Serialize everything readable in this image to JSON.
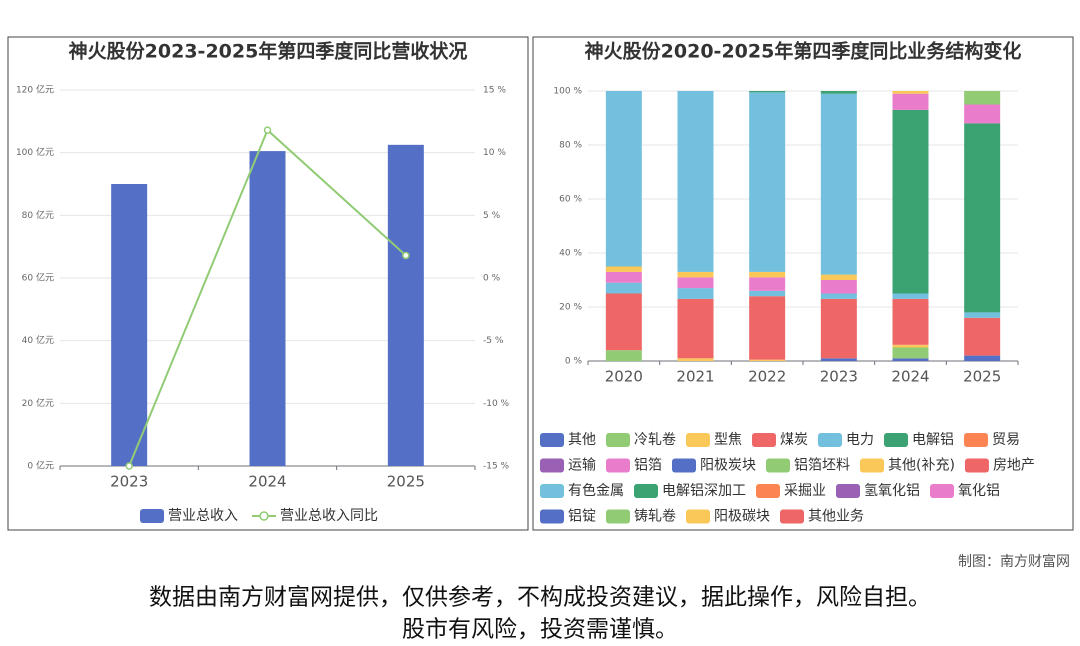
{
  "chart_data": [
    {
      "type": "bar",
      "title": "神火股份2023-2025年第四季度同比营收状况",
      "categories": [
        "2023",
        "2024",
        "2025"
      ],
      "series": [
        {
          "name": "营业总收入",
          "color": "#5470c6",
          "values": [
            90,
            100.5,
            102.5
          ]
        },
        {
          "name": "营业总收入同比",
          "color": "#91cc75",
          "type": "line",
          "axis": "y2",
          "values": [
            -15,
            11.8,
            1.8
          ]
        }
      ],
      "ylim": [
        0,
        120
      ],
      "yticks": [
        {
          "value": 0,
          "label": "0 亿元"
        },
        {
          "value": 20,
          "label": "20 亿元"
        },
        {
          "value": 40,
          "label": "40 亿元"
        },
        {
          "value": 60,
          "label": "60 亿元"
        },
        {
          "value": 80,
          "label": "80 亿元"
        },
        {
          "value": 100,
          "label": "100 亿元"
        },
        {
          "value": 120,
          "label": "120 亿元"
        }
      ],
      "y2lim": [
        -15,
        15
      ],
      "y2ticks": [
        {
          "value": -15,
          "label": "-15 %"
        },
        {
          "value": -10,
          "label": "-10 %"
        },
        {
          "value": -5,
          "label": "-5 %"
        },
        {
          "value": 0,
          "label": "0 %"
        },
        {
          "value": 5,
          "label": "5 %"
        },
        {
          "value": 10,
          "label": "10 %"
        },
        {
          "value": 15,
          "label": "15 %"
        }
      ],
      "grid": true
    },
    {
      "type": "stacked_bar",
      "title": "神火股份2020-2025年第四季度同比业务结构变化",
      "categories": [
        "2020",
        "2021",
        "2022",
        "2023",
        "2024",
        "2025"
      ],
      "series": [
        {
          "name": "其他",
          "color": "#5470c6",
          "values": [
            null,
            null,
            null,
            1,
            1,
            2
          ]
        },
        {
          "name": "冷轧卷",
          "color": "#91cc75",
          "values": [
            4,
            null,
            null,
            null,
            4,
            null
          ]
        },
        {
          "name": "型焦",
          "color": "#fac858",
          "values": [
            null,
            1,
            0.5,
            null,
            1,
            null
          ]
        },
        {
          "name": "煤炭",
          "color": "#ee6666",
          "values": [
            21,
            22,
            23.5,
            22,
            17,
            14
          ]
        },
        {
          "name": "电力",
          "color": "#73c0de",
          "values": [
            4,
            4,
            2,
            2,
            2,
            2
          ]
        },
        {
          "name": "电解铝",
          "color": "#3ba272",
          "values": [
            null,
            null,
            null,
            null,
            68,
            70
          ]
        },
        {
          "name": "贸易",
          "color": "#fc8452",
          "values": [
            null,
            null,
            null,
            null,
            null,
            null
          ]
        },
        {
          "name": "运输",
          "color": "#9a60b4",
          "values": [
            null,
            null,
            null,
            null,
            null,
            null
          ]
        },
        {
          "name": "铝箔",
          "color": "#ea7ccc",
          "values": [
            4,
            4,
            5,
            5,
            6,
            7
          ]
        },
        {
          "name": "阳极炭块",
          "color": "#5470c6",
          "values": [
            null,
            null,
            null,
            null,
            null,
            null
          ]
        },
        {
          "name": "铝箔坯料",
          "color": "#91cc75",
          "values": [
            null,
            null,
            null,
            null,
            null,
            5
          ]
        },
        {
          "name": "其他(补充)",
          "color": "#fac858",
          "values": [
            2,
            2,
            2,
            2,
            1,
            null
          ]
        },
        {
          "name": "房地产",
          "color": "#ee6666",
          "values": [
            null,
            null,
            null,
            null,
            null,
            null
          ]
        },
        {
          "name": "有色金属",
          "color": "#73c0de",
          "values": [
            65,
            67,
            66.5,
            67,
            null,
            null
          ]
        },
        {
          "name": "电解铝深加工",
          "color": "#3ba272",
          "values": [
            null,
            null,
            0.5,
            1,
            null,
            null
          ]
        },
        {
          "name": "采掘业",
          "color": "#fc8452",
          "values": [
            null,
            null,
            null,
            null,
            null,
            null
          ]
        },
        {
          "name": "氢氧化铝",
          "color": "#9a60b4",
          "values": [
            null,
            null,
            null,
            null,
            null,
            null
          ]
        },
        {
          "name": "氧化铝",
          "color": "#ea7ccc",
          "values": [
            null,
            null,
            null,
            null,
            null,
            null
          ]
        },
        {
          "name": "铝锭",
          "color": "#5470c6",
          "values": [
            null,
            null,
            null,
            null,
            null,
            null
          ]
        },
        {
          "name": "铸轧卷",
          "color": "#91cc75",
          "values": [
            null,
            null,
            null,
            null,
            null,
            null
          ]
        },
        {
          "name": "阳极碳块",
          "color": "#fac858",
          "values": [
            null,
            null,
            null,
            null,
            null,
            null
          ]
        },
        {
          "name": "其他业务",
          "color": "#ee6666",
          "values": [
            null,
            null,
            null,
            null,
            null,
            null
          ]
        }
      ],
      "ylim": [
        0,
        100
      ],
      "yticks": [
        {
          "value": 0,
          "label": "0 %"
        },
        {
          "value": 20,
          "label": "20 %"
        },
        {
          "value": 40,
          "label": "40 %"
        },
        {
          "value": 60,
          "label": "60 %"
        },
        {
          "value": 80,
          "label": "80 %"
        },
        {
          "value": 100,
          "label": "100 %"
        }
      ],
      "grid": true
    }
  ],
  "credit": "制图：南方财富网",
  "disclaimer": [
    "数据由南方财富网提供，仅供参考，不构成投资建议，据此操作，风险自担。",
    "股市有风险，投资需谨慎。"
  ]
}
